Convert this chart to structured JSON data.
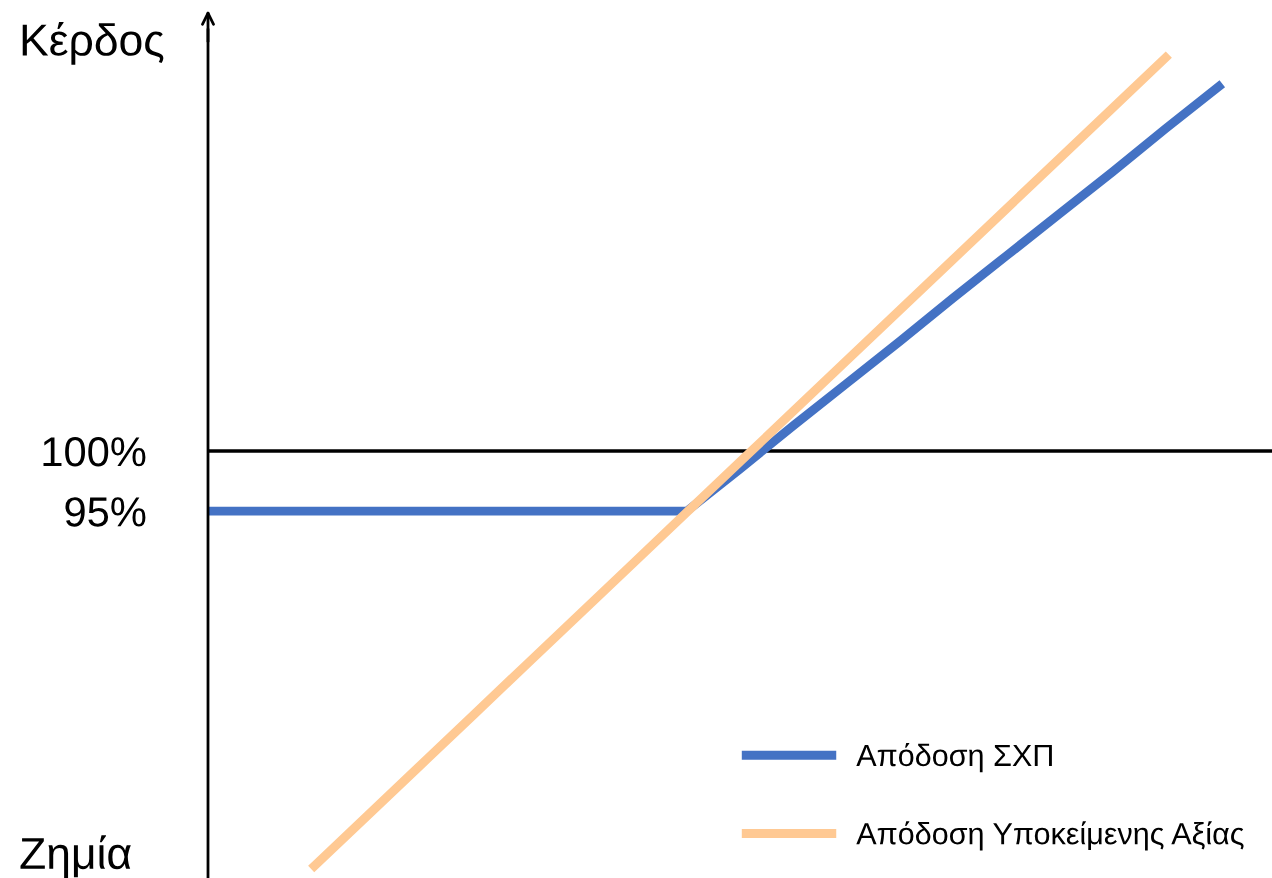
{
  "chart_data": {
    "type": "line",
    "categories": [
      null,
      null,
      null,
      null,
      null,
      null,
      null,
      null,
      null,
      null,
      null,
      null,
      null,
      null,
      null,
      null,
      null,
      null,
      null,
      null,
      null
    ],
    "series": [
      {
        "name": "Απόδοση ΣΧΠ",
        "color": "#4472c4",
        "values": [
          95,
          95,
          95,
          95,
          95,
          95,
          95,
          95,
          95,
          95,
          98.5,
          102.1,
          105.6,
          109.1,
          112.7,
          116.2,
          119.7,
          123.2,
          126.8,
          130.3,
          null
        ]
      },
      {
        "name": "Απόδοση Υποκείμενης Αξίας",
        "color": "#ffc993",
        "values": [
          null,
          null,
          65.5,
          69.7,
          73.9,
          78.1,
          82.3,
          86.5,
          90.7,
          94.9,
          99.1,
          103.3,
          107.5,
          111.7,
          115.9,
          120.1,
          124.3,
          128.5,
          132.7,
          null,
          null
        ]
      }
    ],
    "ylim": [
      64.5,
      135
    ],
    "yticks": [
      {
        "value": 100,
        "label": "100%"
      },
      {
        "value": 95,
        "label": "95%"
      }
    ],
    "tick_labels": "y",
    "ref_lines": [
      {
        "axis": "y",
        "value": 100,
        "color": "#000000"
      }
    ],
    "annotations": [
      "Κέρδος",
      "Ζημία"
    ],
    "grid": false,
    "legend": "bottom right",
    "marker": "none",
    "line_style": "solid"
  }
}
